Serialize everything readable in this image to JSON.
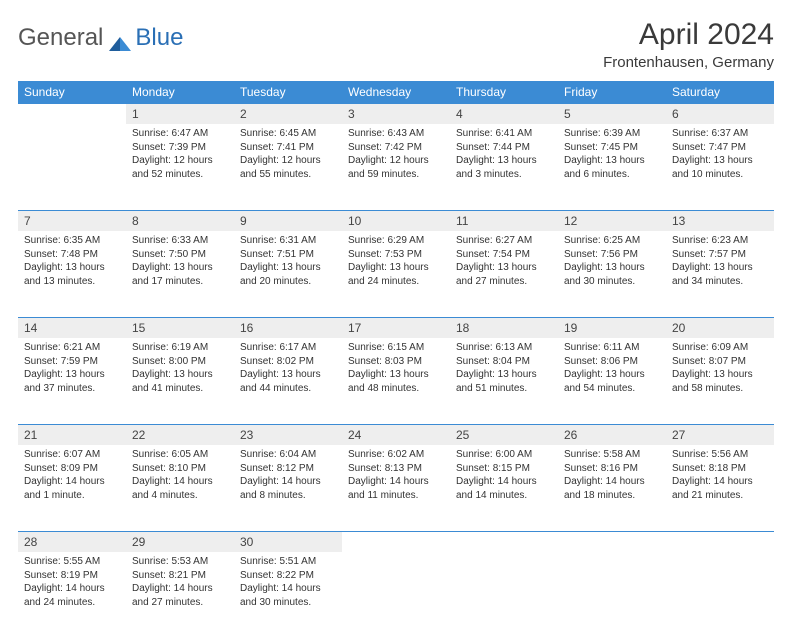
{
  "brand": {
    "part1": "General",
    "part2": "Blue"
  },
  "title": {
    "month": "April 2024",
    "location": "Frontenhausen, Germany"
  },
  "colors": {
    "header_bg": "#3b8bd4",
    "header_fg": "#ffffff",
    "daynum_bg": "#eeeeee",
    "divider": "#3b8bd4",
    "text": "#333333",
    "brand_gray": "#555555",
    "brand_blue": "#2a6fb5"
  },
  "weekdays": [
    "Sunday",
    "Monday",
    "Tuesday",
    "Wednesday",
    "Thursday",
    "Friday",
    "Saturday"
  ],
  "weeks": [
    [
      null,
      {
        "n": "1",
        "sr": "Sunrise: 6:47 AM",
        "ss": "Sunset: 7:39 PM",
        "dl1": "Daylight: 12 hours",
        "dl2": "and 52 minutes."
      },
      {
        "n": "2",
        "sr": "Sunrise: 6:45 AM",
        "ss": "Sunset: 7:41 PM",
        "dl1": "Daylight: 12 hours",
        "dl2": "and 55 minutes."
      },
      {
        "n": "3",
        "sr": "Sunrise: 6:43 AM",
        "ss": "Sunset: 7:42 PM",
        "dl1": "Daylight: 12 hours",
        "dl2": "and 59 minutes."
      },
      {
        "n": "4",
        "sr": "Sunrise: 6:41 AM",
        "ss": "Sunset: 7:44 PM",
        "dl1": "Daylight: 13 hours",
        "dl2": "and 3 minutes."
      },
      {
        "n": "5",
        "sr": "Sunrise: 6:39 AM",
        "ss": "Sunset: 7:45 PM",
        "dl1": "Daylight: 13 hours",
        "dl2": "and 6 minutes."
      },
      {
        "n": "6",
        "sr": "Sunrise: 6:37 AM",
        "ss": "Sunset: 7:47 PM",
        "dl1": "Daylight: 13 hours",
        "dl2": "and 10 minutes."
      }
    ],
    [
      {
        "n": "7",
        "sr": "Sunrise: 6:35 AM",
        "ss": "Sunset: 7:48 PM",
        "dl1": "Daylight: 13 hours",
        "dl2": "and 13 minutes."
      },
      {
        "n": "8",
        "sr": "Sunrise: 6:33 AM",
        "ss": "Sunset: 7:50 PM",
        "dl1": "Daylight: 13 hours",
        "dl2": "and 17 minutes."
      },
      {
        "n": "9",
        "sr": "Sunrise: 6:31 AM",
        "ss": "Sunset: 7:51 PM",
        "dl1": "Daylight: 13 hours",
        "dl2": "and 20 minutes."
      },
      {
        "n": "10",
        "sr": "Sunrise: 6:29 AM",
        "ss": "Sunset: 7:53 PM",
        "dl1": "Daylight: 13 hours",
        "dl2": "and 24 minutes."
      },
      {
        "n": "11",
        "sr": "Sunrise: 6:27 AM",
        "ss": "Sunset: 7:54 PM",
        "dl1": "Daylight: 13 hours",
        "dl2": "and 27 minutes."
      },
      {
        "n": "12",
        "sr": "Sunrise: 6:25 AM",
        "ss": "Sunset: 7:56 PM",
        "dl1": "Daylight: 13 hours",
        "dl2": "and 30 minutes."
      },
      {
        "n": "13",
        "sr": "Sunrise: 6:23 AM",
        "ss": "Sunset: 7:57 PM",
        "dl1": "Daylight: 13 hours",
        "dl2": "and 34 minutes."
      }
    ],
    [
      {
        "n": "14",
        "sr": "Sunrise: 6:21 AM",
        "ss": "Sunset: 7:59 PM",
        "dl1": "Daylight: 13 hours",
        "dl2": "and 37 minutes."
      },
      {
        "n": "15",
        "sr": "Sunrise: 6:19 AM",
        "ss": "Sunset: 8:00 PM",
        "dl1": "Daylight: 13 hours",
        "dl2": "and 41 minutes."
      },
      {
        "n": "16",
        "sr": "Sunrise: 6:17 AM",
        "ss": "Sunset: 8:02 PM",
        "dl1": "Daylight: 13 hours",
        "dl2": "and 44 minutes."
      },
      {
        "n": "17",
        "sr": "Sunrise: 6:15 AM",
        "ss": "Sunset: 8:03 PM",
        "dl1": "Daylight: 13 hours",
        "dl2": "and 48 minutes."
      },
      {
        "n": "18",
        "sr": "Sunrise: 6:13 AM",
        "ss": "Sunset: 8:04 PM",
        "dl1": "Daylight: 13 hours",
        "dl2": "and 51 minutes."
      },
      {
        "n": "19",
        "sr": "Sunrise: 6:11 AM",
        "ss": "Sunset: 8:06 PM",
        "dl1": "Daylight: 13 hours",
        "dl2": "and 54 minutes."
      },
      {
        "n": "20",
        "sr": "Sunrise: 6:09 AM",
        "ss": "Sunset: 8:07 PM",
        "dl1": "Daylight: 13 hours",
        "dl2": "and 58 minutes."
      }
    ],
    [
      {
        "n": "21",
        "sr": "Sunrise: 6:07 AM",
        "ss": "Sunset: 8:09 PM",
        "dl1": "Daylight: 14 hours",
        "dl2": "and 1 minute."
      },
      {
        "n": "22",
        "sr": "Sunrise: 6:05 AM",
        "ss": "Sunset: 8:10 PM",
        "dl1": "Daylight: 14 hours",
        "dl2": "and 4 minutes."
      },
      {
        "n": "23",
        "sr": "Sunrise: 6:04 AM",
        "ss": "Sunset: 8:12 PM",
        "dl1": "Daylight: 14 hours",
        "dl2": "and 8 minutes."
      },
      {
        "n": "24",
        "sr": "Sunrise: 6:02 AM",
        "ss": "Sunset: 8:13 PM",
        "dl1": "Daylight: 14 hours",
        "dl2": "and 11 minutes."
      },
      {
        "n": "25",
        "sr": "Sunrise: 6:00 AM",
        "ss": "Sunset: 8:15 PM",
        "dl1": "Daylight: 14 hours",
        "dl2": "and 14 minutes."
      },
      {
        "n": "26",
        "sr": "Sunrise: 5:58 AM",
        "ss": "Sunset: 8:16 PM",
        "dl1": "Daylight: 14 hours",
        "dl2": "and 18 minutes."
      },
      {
        "n": "27",
        "sr": "Sunrise: 5:56 AM",
        "ss": "Sunset: 8:18 PM",
        "dl1": "Daylight: 14 hours",
        "dl2": "and 21 minutes."
      }
    ],
    [
      {
        "n": "28",
        "sr": "Sunrise: 5:55 AM",
        "ss": "Sunset: 8:19 PM",
        "dl1": "Daylight: 14 hours",
        "dl2": "and 24 minutes."
      },
      {
        "n": "29",
        "sr": "Sunrise: 5:53 AM",
        "ss": "Sunset: 8:21 PM",
        "dl1": "Daylight: 14 hours",
        "dl2": "and 27 minutes."
      },
      {
        "n": "30",
        "sr": "Sunrise: 5:51 AM",
        "ss": "Sunset: 8:22 PM",
        "dl1": "Daylight: 14 hours",
        "dl2": "and 30 minutes."
      },
      null,
      null,
      null,
      null
    ]
  ]
}
